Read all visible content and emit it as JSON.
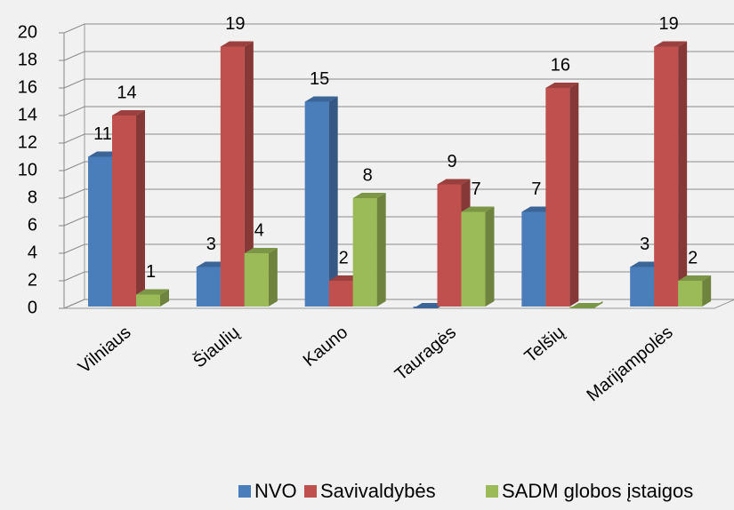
{
  "chart_data": {
    "type": "bar3d",
    "categories": [
      "Vilniaus",
      "Šiaulių",
      "Kauno",
      "Tauragės",
      "Telšių",
      "Marijampolės"
    ],
    "series": [
      {
        "name": "NVO",
        "color": "#4a7ebb",
        "values": [
          11,
          3,
          15,
          0,
          7,
          3
        ]
      },
      {
        "name": "Savivaldybės",
        "color": "#c0504d",
        "values": [
          14,
          19,
          2,
          9,
          16,
          19
        ]
      },
      {
        "name": "SADM globos įstaigos",
        "color": "#9bbb59",
        "values": [
          1,
          4,
          8,
          7,
          0,
          2
        ]
      }
    ],
    "ylim": [
      0,
      20
    ],
    "yticks": [
      0,
      2,
      4,
      6,
      8,
      10,
      12,
      14,
      16,
      18,
      20
    ],
    "grid": true,
    "legend": "bottom"
  }
}
